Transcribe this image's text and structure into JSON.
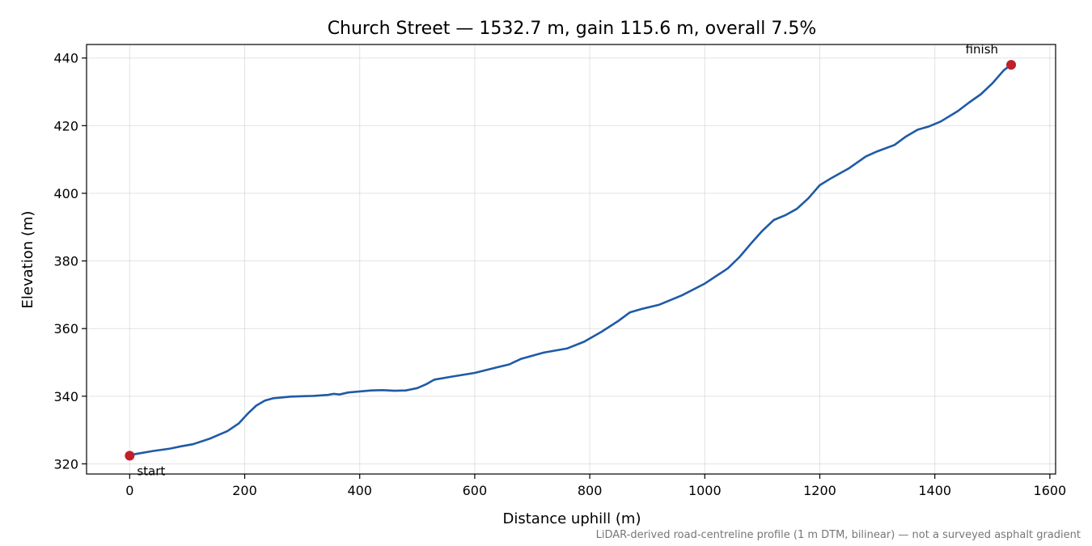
{
  "chart_data": {
    "type": "line",
    "title": "Church Street — 1532.7 m, gain 115.6 m, overall 7.5%",
    "xlabel": "Distance uphill (m)",
    "ylabel": "Elevation (m)",
    "xlim": [
      -75,
      1610
    ],
    "ylim": [
      317,
      444
    ],
    "xticks": [
      0,
      200,
      400,
      600,
      800,
      1000,
      1200,
      1400,
      1600
    ],
    "yticks": [
      320,
      340,
      360,
      380,
      400,
      420,
      440
    ],
    "xtick_labels": [
      "0",
      "200",
      "400",
      "600",
      "800",
      "1000",
      "1200",
      "1400",
      "1600"
    ],
    "ytick_labels": [
      "320",
      "340",
      "360",
      "380",
      "400",
      "420",
      "440"
    ],
    "grid": true,
    "series": [
      {
        "color": "#1f5aa6",
        "x": [
          0,
          10,
          40,
          70,
          90,
          110,
          140,
          170,
          190,
          205,
          220,
          235,
          250,
          280,
          320,
          345,
          355,
          365,
          380,
          420,
          440,
          460,
          480,
          500,
          515,
          530,
          560,
          600,
          640,
          660,
          680,
          720,
          760,
          790,
          820,
          850,
          870,
          890,
          920,
          960,
          1000,
          1040,
          1060,
          1080,
          1100,
          1120,
          1140,
          1160,
          1180,
          1200,
          1220,
          1250,
          1280,
          1300,
          1330,
          1350,
          1370,
          1390,
          1410,
          1440,
          1460,
          1480,
          1500,
          1520,
          1532.7
        ],
        "y": [
          322.4,
          322.9,
          323.8,
          324.5,
          325.2,
          325.8,
          327.5,
          329.7,
          332.0,
          334.8,
          337.2,
          338.7,
          339.4,
          339.9,
          340.1,
          340.4,
          340.7,
          340.5,
          341.1,
          341.7,
          341.8,
          341.6,
          341.7,
          342.4,
          343.5,
          344.9,
          345.8,
          346.9,
          348.6,
          349.4,
          351.0,
          352.9,
          354.1,
          356.1,
          359.0,
          362.3,
          364.8,
          365.8,
          367.0,
          369.8,
          373.3,
          377.8,
          381.1,
          385.1,
          388.9,
          392.1,
          393.5,
          395.4,
          398.5,
          402.4,
          404.5,
          407.3,
          410.9,
          412.4,
          414.3,
          416.8,
          418.8,
          419.8,
          421.2,
          424.3,
          426.9,
          429.3,
          432.5,
          436.4,
          438.0
        ]
      }
    ],
    "markers": [
      {
        "name": "start",
        "x": 0,
        "y": 322.4,
        "color": "#c0202a"
      },
      {
        "name": "finish",
        "x": 1532.7,
        "y": 438.0,
        "color": "#c0202a"
      }
    ],
    "annotations": [
      {
        "text": "start",
        "x": 0,
        "y": 322.4
      },
      {
        "text": "finish",
        "x": 1532.7,
        "y": 438.0
      }
    ],
    "footnote": "LiDAR-derived road-centreline profile (1 m DTM, bilinear) — not a surveyed asphalt gradient"
  }
}
